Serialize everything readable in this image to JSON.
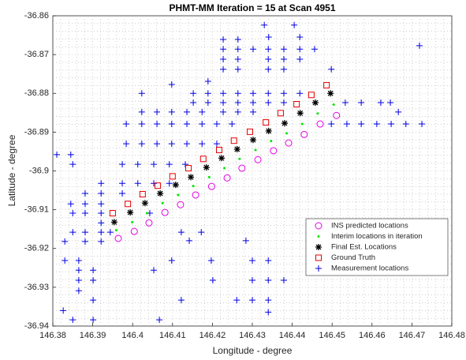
{
  "chart_data": {
    "type": "scatter",
    "title": "PHMT-MM Iteration = 15    at Scan  4951",
    "x_label": "Longitude - degree",
    "y_label": "Latitude - degree",
    "xlim": [
      146.38,
      146.48
    ],
    "ylim": [
      -36.94,
      -36.86
    ],
    "xticks": [
      146.38,
      146.39,
      146.4,
      146.41,
      146.42,
      146.43,
      146.44,
      146.45,
      146.46,
      146.47,
      146.48
    ],
    "yticks": [
      -36.94,
      -36.93,
      -36.92,
      -36.91,
      -36.9,
      -36.89,
      -36.88,
      -36.87,
      -36.86
    ],
    "grid": true,
    "legend": "lower right",
    "series": [
      {
        "name": "INS predicted locations",
        "color": "#e600e6",
        "marker": "circle",
        "x": [
          146.3964,
          146.4004,
          146.4041,
          146.4081,
          146.412,
          146.4158,
          146.4198,
          146.4237,
          146.4274,
          146.4314,
          146.4353,
          146.4391,
          146.443,
          146.447,
          146.4511
        ],
        "y": [
          -36.9174,
          -36.9156,
          -36.9134,
          -36.9107,
          -36.9087,
          -36.9062,
          -36.904,
          -36.9018,
          -36.8993,
          -36.8971,
          -36.8948,
          -36.8928,
          -36.8906,
          -36.8879,
          -36.8857
        ]
      },
      {
        "name": "Interim locations in iteration",
        "color": "#00e600",
        "marker": "dot",
        "x": [
          146.3959,
          146.3999,
          146.4036,
          146.4075,
          146.4114,
          146.4152,
          146.4192,
          146.423,
          146.4268,
          146.4308,
          146.4347,
          146.4386,
          146.4425,
          146.4464,
          146.4504
        ],
        "y": [
          -36.9153,
          -36.9132,
          -36.9109,
          -36.9083,
          -36.9062,
          -36.9039,
          -36.9016,
          -36.8993,
          -36.8969,
          -36.8946,
          -36.8923,
          -36.8903,
          -36.8879,
          -36.8852,
          -36.8829
        ]
      },
      {
        "name": "Final Est. Locations",
        "color": "#000000",
        "marker": "asterisk",
        "x": [
          146.3954,
          146.3994,
          146.4031,
          146.4069,
          146.4108,
          146.4146,
          146.4185,
          146.4223,
          146.4262,
          146.4302,
          146.4341,
          146.4381,
          146.442,
          146.4458,
          146.4496
        ],
        "y": [
          -36.9132,
          -36.9107,
          -36.9083,
          -36.9058,
          -36.9036,
          -36.9016,
          -36.8991,
          -36.8967,
          -36.8944,
          -36.892,
          -36.8897,
          -36.8877,
          -36.8851,
          -36.8824,
          -36.88
        ]
      },
      {
        "name": "Ground Truth",
        "color": "#e60000",
        "marker": "square",
        "x": [
          146.395,
          146.3988,
          146.4025,
          146.4063,
          146.41,
          146.414,
          146.4177,
          146.4217,
          146.4254,
          146.4294,
          146.4334,
          146.4371,
          146.4411,
          146.4448,
          146.4486
        ],
        "y": [
          -36.9109,
          -36.9085,
          -36.906,
          -36.9038,
          -36.9014,
          -36.8993,
          -36.8969,
          -36.8946,
          -36.8922,
          -36.8899,
          -36.8875,
          -36.8851,
          -36.8828,
          -36.8804,
          -36.8779
        ]
      },
      {
        "name": "Measurement locations",
        "color": "#0000e6",
        "marker": "plus",
        "x": [
          146.433,
          146.4341,
          146.4405,
          146.4227,
          146.4264,
          146.4227,
          146.4227,
          146.4227,
          146.4264,
          146.4264,
          146.4264,
          146.4302,
          146.434,
          146.4379,
          146.4419,
          146.4419,
          146.4456,
          146.434,
          146.4379,
          146.4419,
          146.434,
          146.4379,
          146.4498,
          146.4189,
          146.4189,
          146.4152,
          146.4227,
          146.4264,
          146.4302,
          146.434,
          146.4379,
          146.4419,
          146.4152,
          146.4189,
          146.4227,
          146.4264,
          146.4302,
          146.434,
          146.4379,
          146.4533,
          146.4573,
          146.4622,
          146.4646,
          146.4227,
          146.4264,
          146.4302,
          146.4098,
          146.4023,
          146.4023,
          146.4061,
          146.4098,
          146.4136,
          146.4174,
          146.3984,
          146.4023,
          146.4061,
          146.4098,
          146.4136,
          146.4174,
          146.4211,
          146.4249,
          146.4498,
          146.4537,
          146.4573,
          146.4612,
          146.4648,
          146.4685,
          146.4725,
          146.4666,
          146.3984,
          146.4023,
          146.4061,
          146.4098,
          146.4136,
          146.4174,
          146.4211,
          146.3845,
          146.385,
          146.381,
          146.3974,
          146.4013,
          146.4053,
          146.4092,
          146.4132,
          146.3921,
          146.3974,
          146.4013,
          146.4053,
          146.4092,
          146.3881,
          146.3921,
          146.3974,
          146.3845,
          146.3881,
          146.3921,
          146.3881,
          146.3921,
          146.3921,
          146.385,
          146.385,
          146.3881,
          146.3921,
          146.3944,
          146.383,
          146.3881,
          146.3921,
          146.383,
          146.3865,
          146.3865,
          146.3865,
          146.3901,
          146.3901,
          146.3865,
          146.3901,
          146.3826,
          146.385,
          146.3901,
          146.4043,
          146.4122,
          146.4172,
          146.4142,
          146.4098,
          146.4053,
          146.4122,
          146.4067,
          146.4201,
          146.4197,
          146.43,
          146.434,
          146.43,
          146.434,
          146.4261,
          146.43,
          146.434,
          146.434,
          146.4379,
          146.4284,
          146.4719
        ],
        "y": [
          -36.8624,
          -36.8655,
          -36.8624,
          -36.8661,
          -36.8661,
          -36.8686,
          -36.8712,
          -36.8738,
          -36.8686,
          -36.8712,
          -36.8738,
          -36.8686,
          -36.8686,
          -36.8686,
          -36.8686,
          -36.8655,
          -36.8686,
          -36.8712,
          -36.8712,
          -36.8712,
          -36.8738,
          -36.8738,
          -36.8738,
          -36.8769,
          -36.88,
          -36.88,
          -36.88,
          -36.88,
          -36.88,
          -36.88,
          -36.88,
          -36.88,
          -36.8824,
          -36.8824,
          -36.8824,
          -36.8824,
          -36.8824,
          -36.8824,
          -36.8824,
          -36.8824,
          -36.8824,
          -36.8824,
          -36.8824,
          -36.8848,
          -36.8848,
          -36.8848,
          -36.8777,
          -36.88,
          -36.8848,
          -36.8848,
          -36.8848,
          -36.8848,
          -36.8848,
          -36.8879,
          -36.8879,
          -36.8879,
          -36.8879,
          -36.8879,
          -36.8879,
          -36.8879,
          -36.8879,
          -36.8879,
          -36.8879,
          -36.8879,
          -36.8879,
          -36.8879,
          -36.8879,
          -36.8879,
          -36.8848,
          -36.893,
          -36.893,
          -36.893,
          -36.893,
          -36.893,
          -36.893,
          -36.893,
          -36.8958,
          -36.8983,
          -36.8958,
          -36.8983,
          -36.8983,
          -36.8983,
          -36.8983,
          -36.8983,
          -36.9032,
          -36.9032,
          -36.9032,
          -36.9032,
          -36.9032,
          -36.9058,
          -36.9058,
          -36.9058,
          -36.9085,
          -36.9085,
          -36.9085,
          -36.9109,
          -36.9109,
          -36.9134,
          -36.9109,
          -36.9158,
          -36.9158,
          -36.9158,
          -36.9158,
          -36.9182,
          -36.9182,
          -36.9182,
          -36.9231,
          -36.9231,
          -36.9256,
          -36.9282,
          -36.9256,
          -36.9282,
          -36.9309,
          -36.9333,
          -36.936,
          -36.9384,
          -36.9384,
          -36.9109,
          -36.9158,
          -36.9158,
          -36.918,
          -36.9231,
          -36.9256,
          -36.9333,
          -36.9384,
          -36.9282,
          -36.9231,
          -36.9231,
          -36.9231,
          -36.9282,
          -36.9282,
          -36.9333,
          -36.9333,
          -36.9333,
          -36.9364,
          -36.9282,
          -36.918,
          -36.8677
        ]
      }
    ]
  }
}
